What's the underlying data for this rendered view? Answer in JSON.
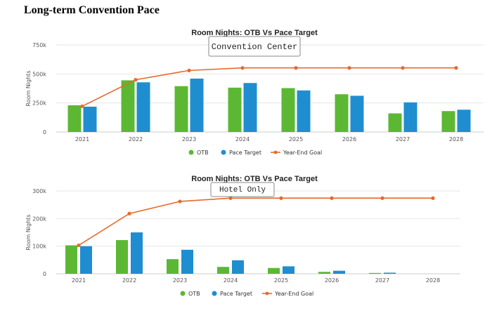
{
  "page_title": "Long-term Convention Pace",
  "colors": {
    "otb": "#5cb833",
    "pace": "#1f8ed0",
    "goal": "#e8692a",
    "grid": "#e6e6e6"
  },
  "chart_data": [
    {
      "type": "bar",
      "title": "Room Nights: OTB Vs Pace Target",
      "annotation": "Convention Center",
      "ylabel": "Room Nights",
      "ylim": [
        0,
        750000
      ],
      "yticks": [
        "0",
        "250k",
        "500k",
        "750k"
      ],
      "categories": [
        "2021",
        "2022",
        "2023",
        "2024",
        "2025",
        "2026",
        "2027",
        "2028"
      ],
      "series": [
        {
          "name": "OTB",
          "type": "bar",
          "values": [
            230000,
            445000,
            395000,
            382000,
            378000,
            325000,
            160000,
            180000
          ]
        },
        {
          "name": "Pace Target",
          "type": "bar",
          "values": [
            218000,
            428000,
            460000,
            422000,
            358000,
            312000,
            255000,
            192000
          ]
        },
        {
          "name": "Year-End Goal",
          "type": "line",
          "values": [
            222000,
            450000,
            530000,
            552000,
            552000,
            552000,
            552000,
            552000
          ]
        }
      ],
      "legend": "bottom-center",
      "grid": true
    },
    {
      "type": "bar",
      "title": "Room Nights: OTB Vs Pace Target",
      "annotation": "Hotel Only",
      "ylabel": "Room Nights",
      "ylim": [
        0,
        300000
      ],
      "yticks": [
        "0",
        "100k",
        "200k",
        "300k"
      ],
      "categories": [
        "2021",
        "2022",
        "2023",
        "2024",
        "2025",
        "2026",
        "2027",
        "2028"
      ],
      "series": [
        {
          "name": "OTB",
          "type": "bar",
          "values": [
            103000,
            122000,
            53000,
            25000,
            21000,
            7000,
            3000,
            0
          ]
        },
        {
          "name": "Pace Target",
          "type": "bar",
          "values": [
            100000,
            150000,
            87000,
            49000,
            27000,
            11000,
            4000,
            0
          ]
        },
        {
          "name": "Year-End Goal",
          "type": "line",
          "values": [
            103000,
            218000,
            262000,
            274000,
            274000,
            274000,
            274000,
            274000
          ]
        }
      ],
      "legend": "bottom-center",
      "grid": true
    }
  ]
}
